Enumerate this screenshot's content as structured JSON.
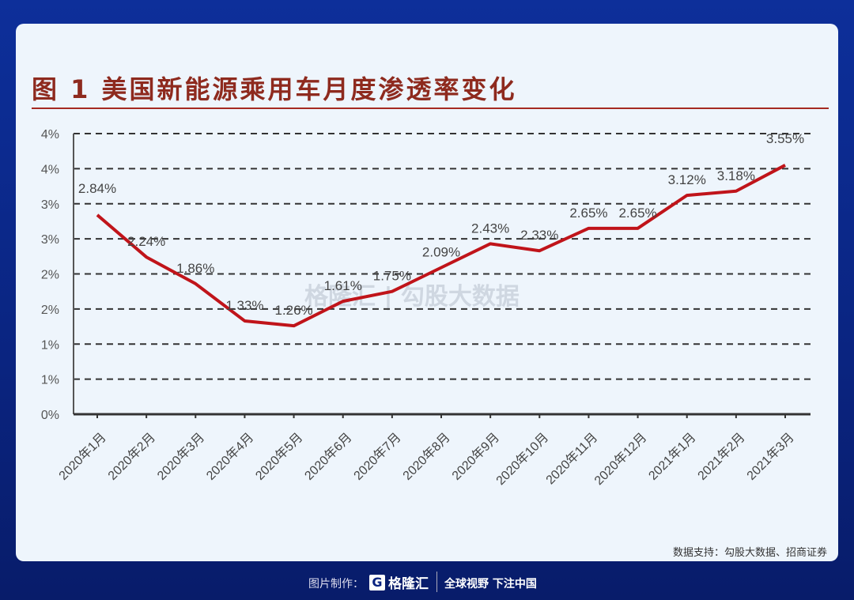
{
  "title": "图 1  美国新能源乘用车月度渗透率变化",
  "source": "数据支持：勾股大数据、招商证券",
  "watermark": "格隆汇 | 勾股大数据",
  "footer": {
    "credit": "图片制作：",
    "logo_text": "格隆汇",
    "slogan": "全球视野 下注中国"
  },
  "colors": {
    "line": "#c0141a",
    "title": "#8e2a1e",
    "background": "#0a2480",
    "card": "#eef5fc"
  },
  "chart_data": {
    "type": "line",
    "title": "图 1  美国新能源乘用车月度渗透率变化",
    "categories": [
      "2020年1月",
      "2020年2月",
      "2020年3月",
      "2020年4月",
      "2020年5月",
      "2020年6月",
      "2020年7月",
      "2020年8月",
      "2020年9月",
      "2020年10月",
      "2020年11月",
      "2020年12月",
      "2021年1月",
      "2021年2月",
      "2021年3月"
    ],
    "values": [
      2.84,
      2.24,
      1.86,
      1.33,
      1.26,
      1.61,
      1.75,
      2.09,
      2.43,
      2.33,
      2.65,
      2.65,
      3.12,
      3.18,
      3.55
    ],
    "data_labels": [
      "2.84%",
      "2.24%",
      "1.86%",
      "1.33%",
      "1.26%",
      "1.61%",
      "1.75%",
      "2.09%",
      "2.43%",
      "2.33%",
      "2.65%",
      "2.65%",
      "3.12%",
      "3.18%",
      "3.55%"
    ],
    "y_ticks": [
      0,
      0.5,
      1,
      1.5,
      2,
      2.5,
      3,
      3.5,
      4
    ],
    "y_tick_labels": [
      "0%",
      "1%",
      "1%",
      "2%",
      "2%",
      "3%",
      "3%",
      "4%",
      "4%"
    ],
    "ylim": [
      0,
      4
    ],
    "grid": "horizontal dashed",
    "legend": "none"
  }
}
